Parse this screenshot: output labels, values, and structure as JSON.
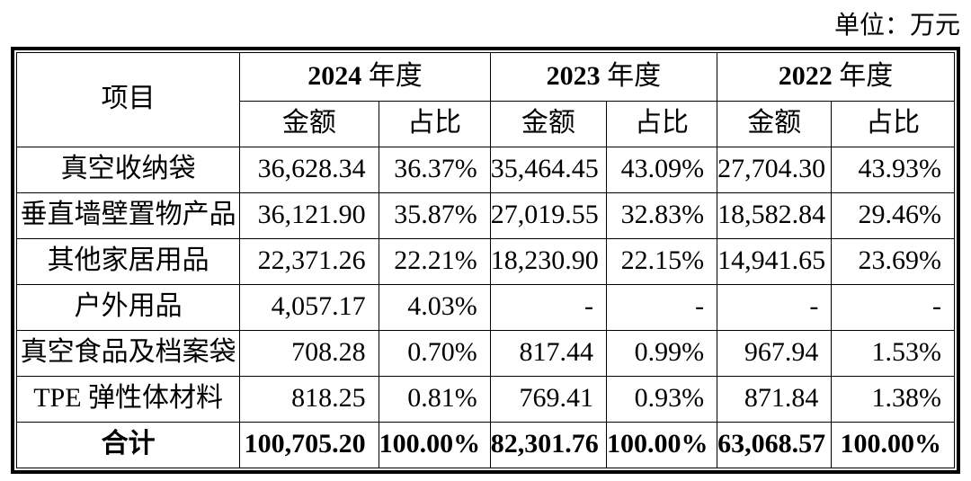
{
  "unit_label": "单位：万元",
  "table": {
    "item_header": "项目",
    "years": [
      {
        "num": "2024",
        "suffix": "年度"
      },
      {
        "num": "2023",
        "suffix": "年度"
      },
      {
        "num": "2022",
        "suffix": "年度"
      }
    ],
    "amount_label": "金额",
    "ratio_label": "占比",
    "rows": [
      {
        "item": "真空收纳袋",
        "values": [
          "36,628.34",
          "36.37%",
          "35,464.45",
          "43.09%",
          "27,704.30",
          "43.93%"
        ]
      },
      {
        "item": "垂直墙壁置物产品",
        "values": [
          "36,121.90",
          "35.87%",
          "27,019.55",
          "32.83%",
          "18,582.84",
          "29.46%"
        ]
      },
      {
        "item": "其他家居用品",
        "values": [
          "22,371.26",
          "22.21%",
          "18,230.90",
          "22.15%",
          "14,941.65",
          "23.69%"
        ]
      },
      {
        "item": "户外用品",
        "values": [
          "4,057.17",
          "4.03%",
          "-",
          "-",
          "-",
          "-"
        ]
      },
      {
        "item": "真空食品及档案袋",
        "values": [
          "708.28",
          "0.70%",
          "817.44",
          "0.99%",
          "967.94",
          "1.53%"
        ]
      },
      {
        "item": "TPE 弹性体材料",
        "values": [
          "818.25",
          "0.81%",
          "769.41",
          "0.93%",
          "871.84",
          "1.38%"
        ]
      }
    ],
    "total_row": {
      "item": "合计",
      "values": [
        "100,705.20",
        "100.00%",
        "82,301.76",
        "100.00%",
        "63,068.57",
        "100.00%"
      ]
    }
  }
}
